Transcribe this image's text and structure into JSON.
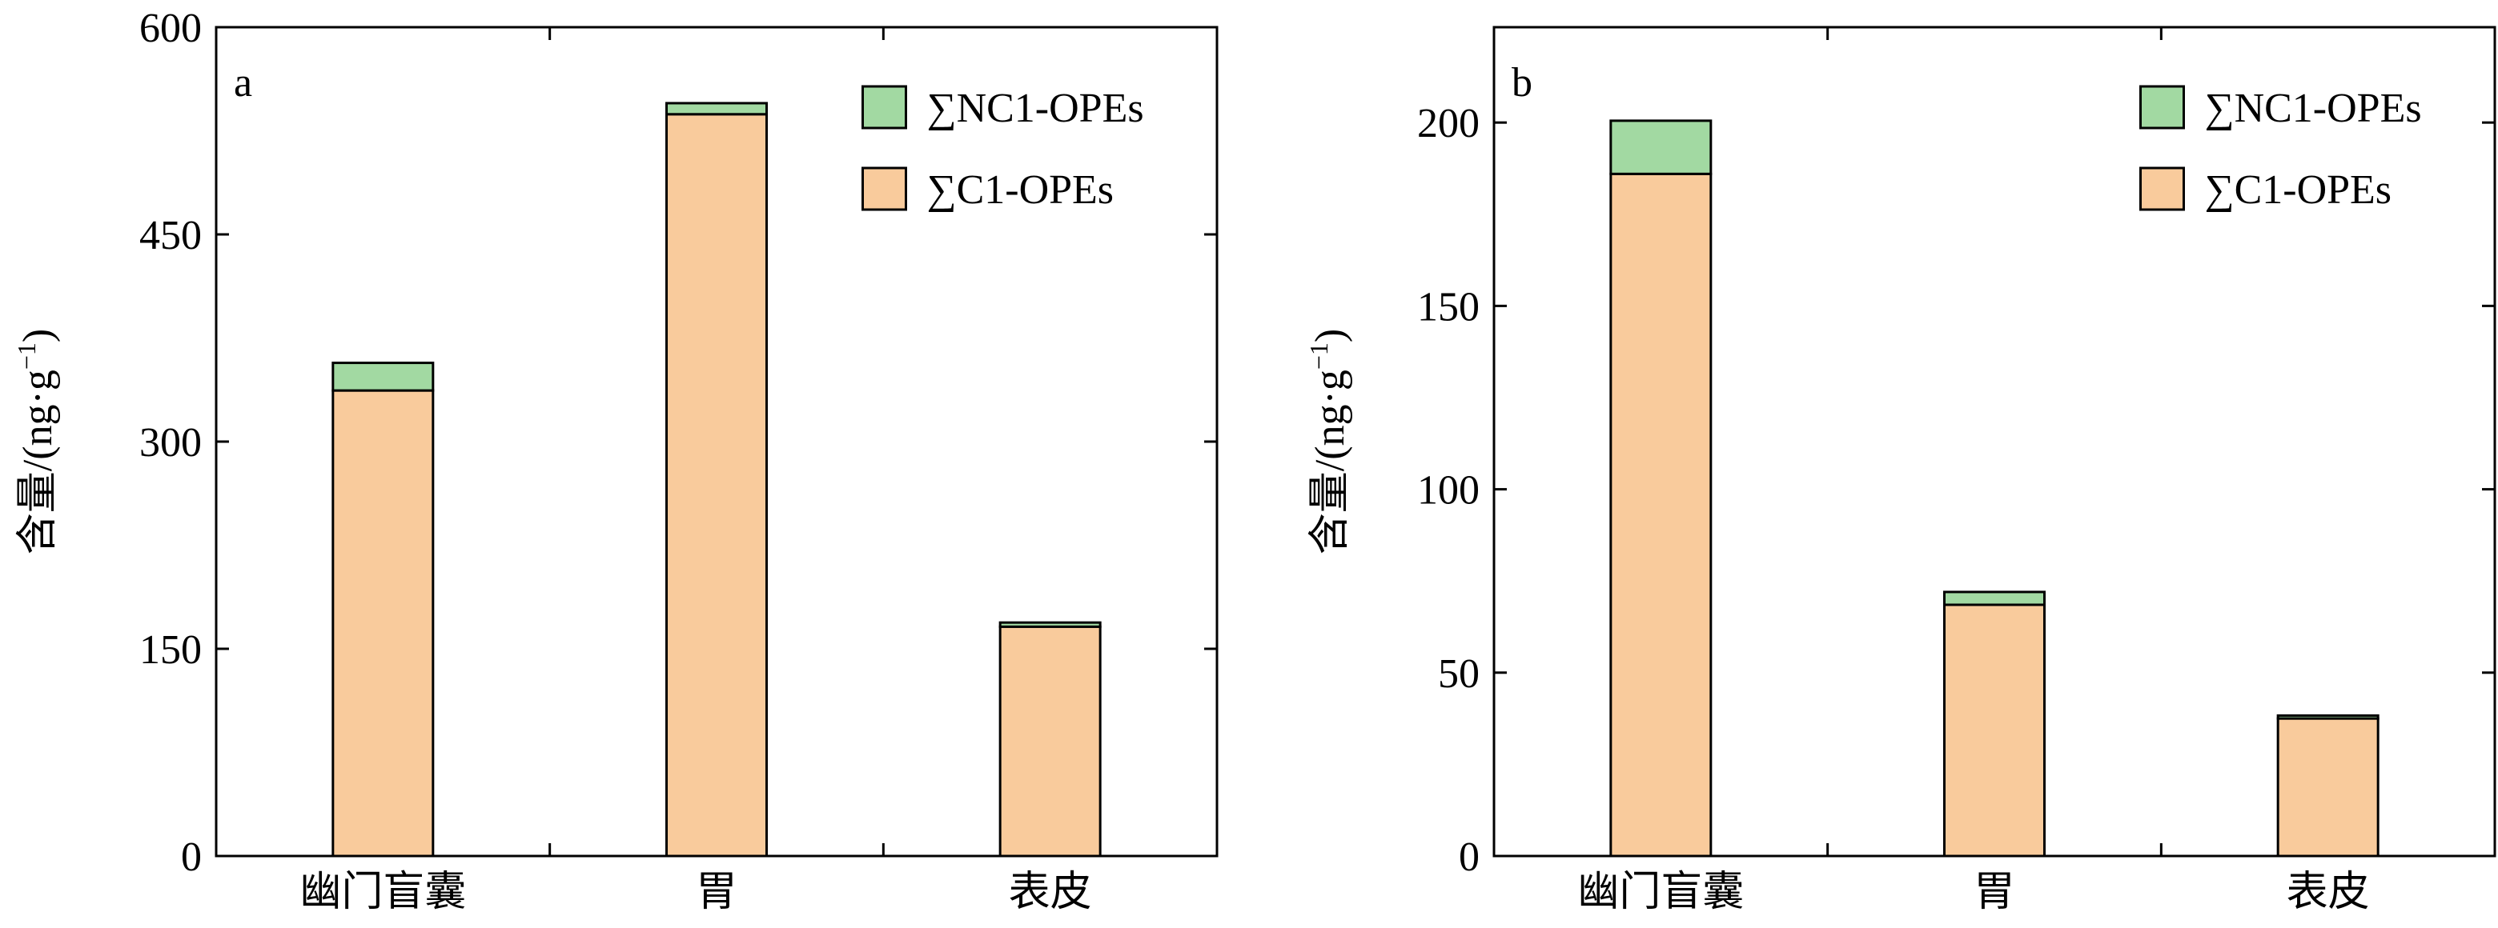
{
  "chart_data": [
    {
      "type": "bar",
      "stacked": true,
      "panel_label": "a",
      "categories": [
        "幽门盲囊",
        "胃",
        "表皮"
      ],
      "series": [
        {
          "name": "∑C1-OPEs",
          "values": [
            337,
            537,
            166
          ],
          "color": "#F9CB9C"
        },
        {
          "name": "∑NC1-OPEs",
          "values": [
            20,
            8,
            3
          ],
          "color": "#A2D9A2"
        }
      ],
      "ylabel": "含量/(ng·g−1)",
      "ylabel_main": "含量/(ng·g",
      "ylabel_sup": "−1",
      "ylabel_close": ")",
      "ylim": [
        0,
        600
      ],
      "yticks": [
        0,
        150,
        300,
        450,
        600
      ],
      "legend_position": "top-right"
    },
    {
      "type": "bar",
      "stacked": true,
      "panel_label": "b",
      "categories": [
        "幽门盲囊",
        "胃",
        "表皮"
      ],
      "series": [
        {
          "name": "∑C1-OPEs",
          "values": [
            186,
            68.5,
            37.5
          ],
          "color": "#F9CB9C"
        },
        {
          "name": "∑NC1-OPEs",
          "values": [
            14.5,
            3.5,
            0.8
          ],
          "color": "#A2D9A2"
        }
      ],
      "ylabel": "含量/(ng·g−1)",
      "ylabel_main": "含量/(ng·g",
      "ylabel_sup": "−1",
      "ylabel_close": ")",
      "ylim": [
        0,
        226
      ],
      "yticks": [
        0,
        50,
        100,
        150,
        200
      ],
      "legend_position": "top-right"
    }
  ]
}
